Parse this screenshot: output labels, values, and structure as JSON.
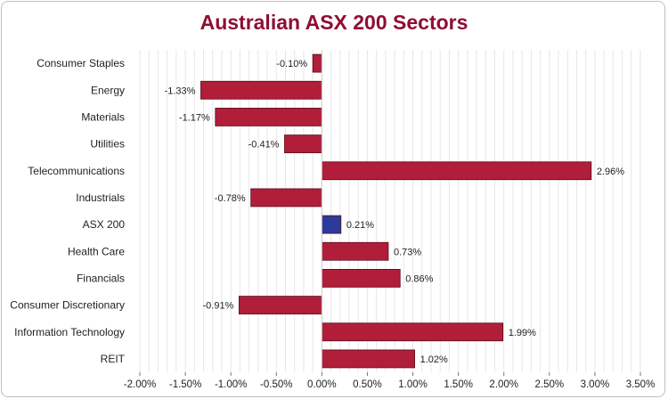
{
  "chart_data": {
    "type": "bar",
    "orientation": "horizontal",
    "title": "Australian ASX 200 Sectors",
    "categories": [
      "Consumer Staples",
      "Energy",
      "Materials",
      "Utilities",
      "Telecommunications",
      "Industrials",
      "ASX 200",
      "Health Care",
      "Financials",
      "Consumer Discretionary",
      "Information Technology",
      "REIT"
    ],
    "values": [
      -0.1,
      -1.33,
      -1.17,
      -0.41,
      2.96,
      -0.78,
      0.21,
      0.73,
      0.86,
      -0.91,
      1.99,
      1.02
    ],
    "value_labels": [
      "-0.10%",
      "-1.33%",
      "-1.17%",
      "-0.41%",
      "2.96%",
      "-0.78%",
      "0.21%",
      "0.73%",
      "0.86%",
      "-0.91%",
      "1.99%",
      "1.02%"
    ],
    "xlim": [
      -2.0,
      3.5
    ],
    "x_ticks": [
      -2.0,
      -1.5,
      -1.0,
      -0.5,
      0.0,
      0.5,
      1.0,
      1.5,
      2.0,
      2.5,
      3.0,
      3.5
    ],
    "x_tick_labels": [
      "-2.00%",
      "-1.50%",
      "-1.00%",
      "-0.50%",
      "0.00%",
      "0.50%",
      "1.00%",
      "1.50%",
      "2.00%",
      "2.50%",
      "3.00%",
      "3.50%"
    ],
    "grid": "vertical minor lines",
    "colors": {
      "bar": "#b01e3a",
      "highlight": "#2b3a9b",
      "title": "#8e0f31",
      "grid": "#e6e6e6"
    },
    "highlight_category": "ASX 200",
    "xlabel": "",
    "ylabel": ""
  }
}
